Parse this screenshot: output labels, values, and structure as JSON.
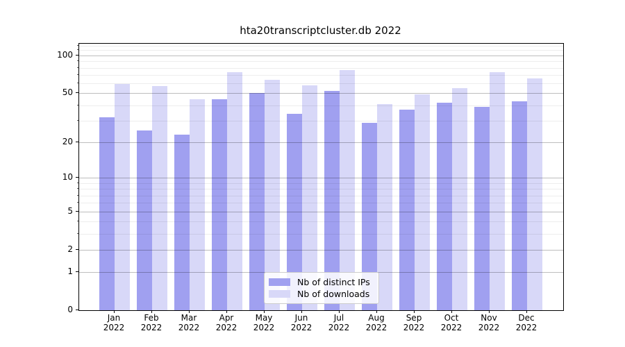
{
  "page": {
    "background_color": "#ffffff"
  },
  "chart_data": {
    "type": "bar",
    "title": "hta20transcriptcluster.db 2022",
    "categories": [
      "Jan",
      "Feb",
      "Mar",
      "Apr",
      "May",
      "Jun",
      "Jul",
      "Aug",
      "Sep",
      "Oct",
      "Nov",
      "Dec"
    ],
    "category_year": "2022",
    "series": [
      {
        "name": "Nb of distinct IPs",
        "color": "#a0a0f0",
        "values": [
          32,
          25,
          23,
          45,
          50,
          34,
          52,
          29,
          37,
          42,
          39,
          43
        ]
      },
      {
        "name": "Nb of downloads",
        "color": "#d8d8f8",
        "values": [
          59,
          57,
          45,
          74,
          64,
          58,
          77,
          41,
          49,
          55,
          74,
          66
        ]
      }
    ],
    "xlabel": "",
    "ylabel": "",
    "y_axis": {
      "scale": "log1p",
      "ticks": [
        0,
        1,
        2,
        5,
        10,
        20,
        50,
        100
      ],
      "minor_ticks": [
        3,
        4,
        6,
        7,
        8,
        9,
        30,
        40,
        60,
        70,
        80,
        90,
        110,
        120
      ],
      "ylim": [
        0,
        124
      ]
    },
    "grid": {
      "enabled": true,
      "major_color": "rgba(0,0,0,0.26)",
      "minor_color": "rgba(0,0,0,0.07)"
    },
    "legend": {
      "position": "lower center"
    }
  }
}
